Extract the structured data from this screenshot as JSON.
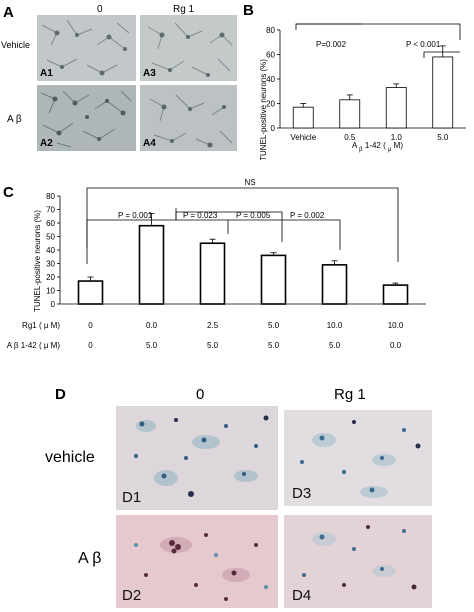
{
  "panel_a": {
    "letter": "A",
    "col_headers": [
      "0",
      "Rg 1"
    ],
    "row_headers": [
      "Vehicle",
      "A β"
    ],
    "images": [
      "A1",
      "A3",
      "A2",
      "A4"
    ]
  },
  "panel_b": {
    "letter": "B",
    "ylabel": "TUNEL-positive neurons (%)",
    "xlabel_main": "A",
    "xlabel_sub": "β",
    "xlabel_rest": "1-42 (",
    "xlabel_mu": "μ",
    "xlabel_end": "M)",
    "annotations": [
      "P=0.002",
      "P < 0.001"
    ]
  },
  "panel_c": {
    "letter": "C",
    "ylabel": "TUNEL-positive neurons (%)",
    "top_annotation": "NS",
    "p_annotations": [
      "P = 0.001",
      "P = 0.023",
      "P = 0.005",
      "P = 0.002"
    ],
    "row1_label": "Rg1 ( μ M)",
    "row1_values": [
      "0",
      "0.0",
      "2.5",
      "5.0",
      "10.0",
      "10.0"
    ],
    "row2_label": "A β 1-42 ( μ M)",
    "row2_values": [
      "0",
      "5.0",
      "5.0",
      "5.0",
      "5.0",
      "0.0"
    ]
  },
  "panel_d": {
    "letter": "D",
    "col_headers": [
      "0",
      "Rg 1"
    ],
    "row_headers": [
      "vehicle",
      "A β"
    ],
    "images": [
      "D1",
      "D3",
      "D2",
      "D4"
    ]
  },
  "chart_data": [
    {
      "type": "bar",
      "panel": "B",
      "categories": [
        "Vehicle",
        "0.5",
        "1.0",
        "5.0"
      ],
      "values": [
        17,
        23,
        33,
        58
      ],
      "errors": [
        3,
        4,
        3,
        9
      ],
      "ylim": [
        0,
        80
      ],
      "yticks": [
        0,
        20,
        40,
        60,
        80
      ],
      "ylabel": "TUNEL-positive neurons (%)",
      "grid": false
    },
    {
      "type": "bar",
      "panel": "C",
      "categories": [
        "0 / 0",
        "0.0 / 5.0",
        "2.5 / 5.0",
        "5.0 / 5.0",
        "10.0 / 5.0",
        "10.0 / 0.0"
      ],
      "values": [
        17,
        58,
        45,
        36,
        29,
        14
      ],
      "errors": [
        3,
        9,
        3,
        2,
        3,
        1.5
      ],
      "ylim": [
        0,
        80
      ],
      "yticks": [
        0,
        10,
        20,
        30,
        40,
        50,
        60,
        70,
        80
      ],
      "ylabel": "TUNEL-positive neurons (%)",
      "grid": false
    }
  ]
}
